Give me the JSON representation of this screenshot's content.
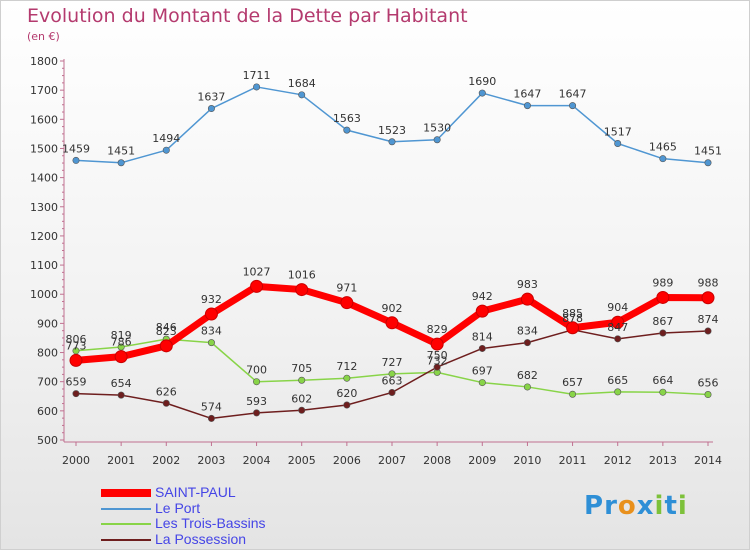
{
  "title": "Evolution du Montant de la Dette par Habitant",
  "subtitle": "(en €)",
  "logo": {
    "text": "Proxiti",
    "letters": [
      "P",
      "r",
      "o",
      "x",
      "i",
      "t",
      "i"
    ],
    "colors": [
      "#2e8fd6",
      "#2e8fd6",
      "#e8901c",
      "#2e8fd6",
      "#7dc13a",
      "#2e8fd6",
      "#7dc13a"
    ]
  },
  "chart_data": {
    "type": "line",
    "title": "Evolution du Montant de la Dette par Habitant",
    "ylabel": "(en €)",
    "xlabel": "",
    "x": [
      "2000",
      "2001",
      "2002",
      "2003",
      "2004",
      "2005",
      "2006",
      "2007",
      "2008",
      "2009",
      "2010",
      "2011",
      "2012",
      "2013",
      "2014"
    ],
    "ylim": [
      500,
      1800
    ],
    "yticks": [
      500,
      600,
      700,
      800,
      900,
      1000,
      1100,
      1200,
      1300,
      1400,
      1500,
      1600,
      1700,
      1800
    ],
    "grid": false,
    "legend_position": "bottom-left",
    "series": [
      {
        "name": "SAINT-PAUL",
        "color": "#ff0000",
        "emphasis": true,
        "values": [
          773,
          786,
          823,
          932,
          1027,
          1016,
          971,
          902,
          829,
          942,
          983,
          885,
          904,
          989,
          988
        ]
      },
      {
        "name": "Le Port",
        "color": "#4f96d2",
        "values": [
          1459,
          1451,
          1494,
          1637,
          1711,
          1684,
          1563,
          1523,
          1530,
          1690,
          1647,
          1647,
          1517,
          1465,
          1451
        ]
      },
      {
        "name": "Les Trois-Bassins",
        "color": "#88d448",
        "values": [
          806,
          819,
          846,
          834,
          700,
          705,
          712,
          727,
          732,
          697,
          682,
          657,
          665,
          664,
          656
        ]
      },
      {
        "name": "La Possession",
        "color": "#6e1e1e",
        "values": [
          659,
          654,
          626,
          574,
          593,
          602,
          620,
          663,
          750,
          814,
          834,
          878,
          847,
          867,
          874
        ]
      }
    ]
  }
}
